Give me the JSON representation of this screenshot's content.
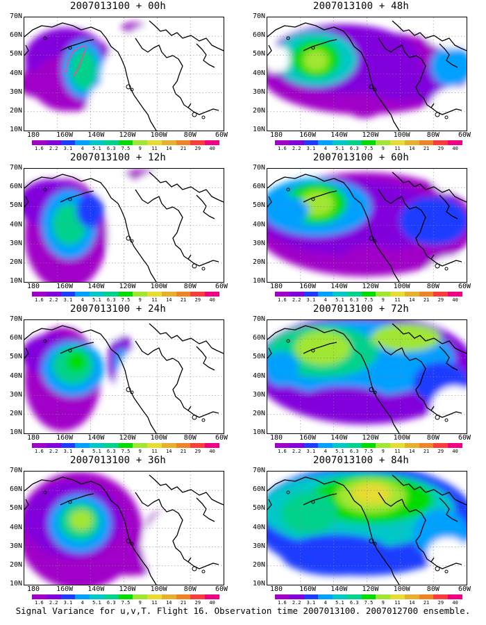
{
  "panels": [
    {
      "title": "2007013100 + 00h"
    },
    {
      "title": "2007013100 + 48h"
    },
    {
      "title": "2007013100 + 12h"
    },
    {
      "title": "2007013100 + 60h"
    },
    {
      "title": "2007013100 + 24h"
    },
    {
      "title": "2007013100 + 72h"
    },
    {
      "title": "2007013100 + 36h"
    },
    {
      "title": "2007013100 + 84h"
    }
  ],
  "axes": {
    "y_labels": [
      "70N",
      "60N",
      "50N",
      "40N",
      "30N",
      "20N",
      "10N"
    ],
    "x_labels": [
      "180",
      "160W",
      "140W",
      "120W",
      "100W",
      "80W",
      "60W"
    ]
  },
  "colorbar": {
    "labels": [
      "1.6",
      "2.2",
      "3.1",
      "4",
      "5.1",
      "6.3",
      "7.5",
      "9",
      "11",
      "14",
      "21",
      "29",
      "40"
    ],
    "colors": [
      "#a000c8",
      "#8200dc",
      "#1e3cff",
      "#00a0ff",
      "#00c8c8",
      "#00d28c",
      "#00dc00",
      "#a0e632",
      "#e6dc32",
      "#e6af2d",
      "#f08228",
      "#fa3c3c",
      "#f00082"
    ]
  },
  "caption": "Signal Variance for u,v,T. Flight 16. Observation time 2007013100. 2007012700 ensemble."
}
